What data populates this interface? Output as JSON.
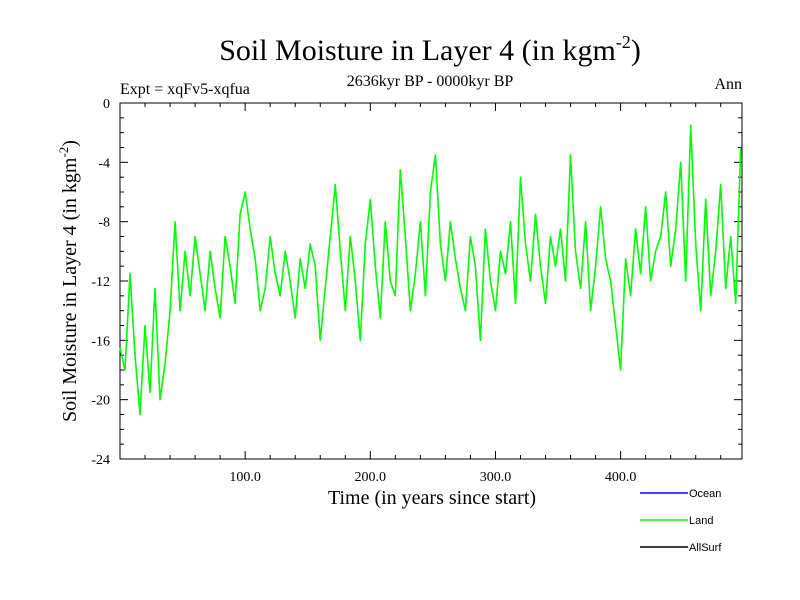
{
  "chart_data": {
    "type": "line",
    "title": "Soil Moisture in Layer 4 (in kgm",
    "title_sup": "-2",
    "title_close": ")",
    "subtitle": "2636kyr BP - 0000kyr BP",
    "expt_label": "Expt = xqFv5-xqfua",
    "season_label": "Ann",
    "xlabel": "Time (in years since start)",
    "ylabel": "Soil Moisture in Layer 4 (in kgm",
    "ylabel_sup": "-2",
    "ylabel_close": ")",
    "xlim": [
      0,
      497
    ],
    "ylim": [
      -24,
      0
    ],
    "x_ticks": [
      100,
      200,
      300,
      400
    ],
    "x_tick_labels": [
      "100.0",
      "200.0",
      "300.0",
      "400.0"
    ],
    "y_ticks": [
      0,
      -4,
      -8,
      -12,
      -16,
      -20,
      -24
    ],
    "y_tick_labels": [
      "0",
      "-4",
      "-8",
      "-12",
      "-16",
      "-20",
      "-24"
    ],
    "legend_position": "bottom-right",
    "series": [
      {
        "name": "Ocean",
        "color": "#0000ff",
        "x": [],
        "values": []
      },
      {
        "name": "Land",
        "color": "#00ff00",
        "x": [
          0,
          4,
          8,
          12,
          16,
          20,
          24,
          28,
          32,
          36,
          40,
          44,
          48,
          52,
          56,
          60,
          64,
          68,
          72,
          76,
          80,
          84,
          88,
          92,
          96,
          100,
          104,
          108,
          112,
          116,
          120,
          124,
          128,
          132,
          136,
          140,
          144,
          148,
          152,
          156,
          160,
          164,
          168,
          172,
          176,
          180,
          184,
          188,
          192,
          196,
          200,
          204,
          208,
          212,
          216,
          220,
          224,
          228,
          232,
          236,
          240,
          244,
          248,
          252,
          256,
          260,
          264,
          268,
          272,
          276,
          280,
          284,
          288,
          292,
          296,
          300,
          304,
          308,
          312,
          316,
          320,
          324,
          328,
          332,
          336,
          340,
          344,
          348,
          352,
          356,
          360,
          364,
          368,
          372,
          376,
          380,
          384,
          388,
          392,
          396,
          400,
          404,
          408,
          412,
          416,
          420,
          424,
          428,
          432,
          436,
          440,
          444,
          448,
          452,
          456,
          460,
          464,
          468,
          472,
          476,
          480,
          484,
          488,
          492,
          496
        ],
        "values": [
          -16.5,
          -18.0,
          -11.5,
          -17.0,
          -21.0,
          -15.0,
          -19.5,
          -12.5,
          -20.0,
          -17.5,
          -14.0,
          -8.0,
          -14.0,
          -10.0,
          -13.0,
          -9.0,
          -11.5,
          -14.0,
          -10.0,
          -12.5,
          -14.5,
          -9.0,
          -11.0,
          -13.5,
          -7.5,
          -6.0,
          -8.5,
          -10.5,
          -14.0,
          -12.5,
          -9.0,
          -11.5,
          -13.0,
          -10.0,
          -12.0,
          -14.5,
          -10.5,
          -12.5,
          -9.5,
          -11.0,
          -16.0,
          -12.5,
          -9.0,
          -5.5,
          -10.0,
          -14.0,
          -9.0,
          -12.0,
          -16.0,
          -9.5,
          -6.5,
          -11.0,
          -14.5,
          -8.0,
          -12.0,
          -13.0,
          -4.5,
          -9.0,
          -14.0,
          -11.5,
          -8.0,
          -13.0,
          -6.0,
          -3.5,
          -9.5,
          -12.0,
          -8.0,
          -10.5,
          -12.5,
          -14.0,
          -9.0,
          -11.0,
          -16.0,
          -8.5,
          -12.0,
          -14.0,
          -10.0,
          -11.5,
          -8.0,
          -13.5,
          -5.0,
          -9.5,
          -12.0,
          -7.5,
          -11.0,
          -13.5,
          -9.0,
          -11.0,
          -8.5,
          -12.0,
          -3.5,
          -10.0,
          -12.5,
          -8.0,
          -14.0,
          -11.0,
          -7.0,
          -10.5,
          -12.0,
          -15.0,
          -18.0,
          -10.5,
          -13.0,
          -8.5,
          -11.5,
          -7.0,
          -12.0,
          -10.0,
          -9.0,
          -6.0,
          -11.0,
          -8.5,
          -4.0,
          -12.0,
          -1.5,
          -9.5,
          -14.0,
          -6.5,
          -13.0,
          -10.0,
          -5.5,
          -12.5,
          -9.0,
          -13.5,
          -3.0
        ]
      },
      {
        "name": "AllSurf",
        "color": "#000000",
        "x": [],
        "values": []
      }
    ]
  }
}
